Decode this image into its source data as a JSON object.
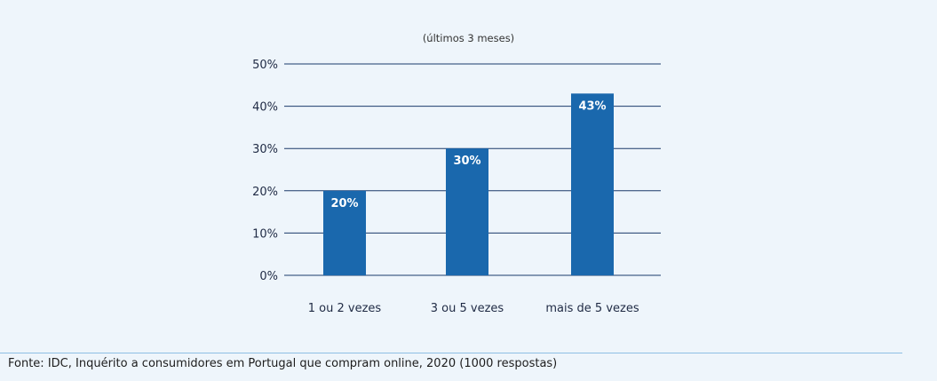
{
  "chart_data": {
    "type": "bar",
    "subtitle": "(últimos 3 meses)",
    "categories": [
      "1 ou 2 vezes",
      "3 ou 5 vezes",
      "mais de 5 vezes"
    ],
    "values": [
      20,
      30,
      43
    ],
    "data_labels": [
      "20%",
      "30%",
      "43%"
    ],
    "yticks": [
      0,
      10,
      20,
      30,
      40,
      50
    ],
    "ytick_labels": [
      "0%",
      "10%",
      "20%",
      "30%",
      "40%",
      "50%"
    ],
    "ylim": [
      0,
      50
    ],
    "grid": true,
    "bar_color": "#1a68ad",
    "label_color": "#ffffff",
    "text_color": "#1f2a44"
  },
  "source": "Fonte: IDC, Inquérito a consumidores em Portugal que compram online, 2020 (1000 respostas)"
}
